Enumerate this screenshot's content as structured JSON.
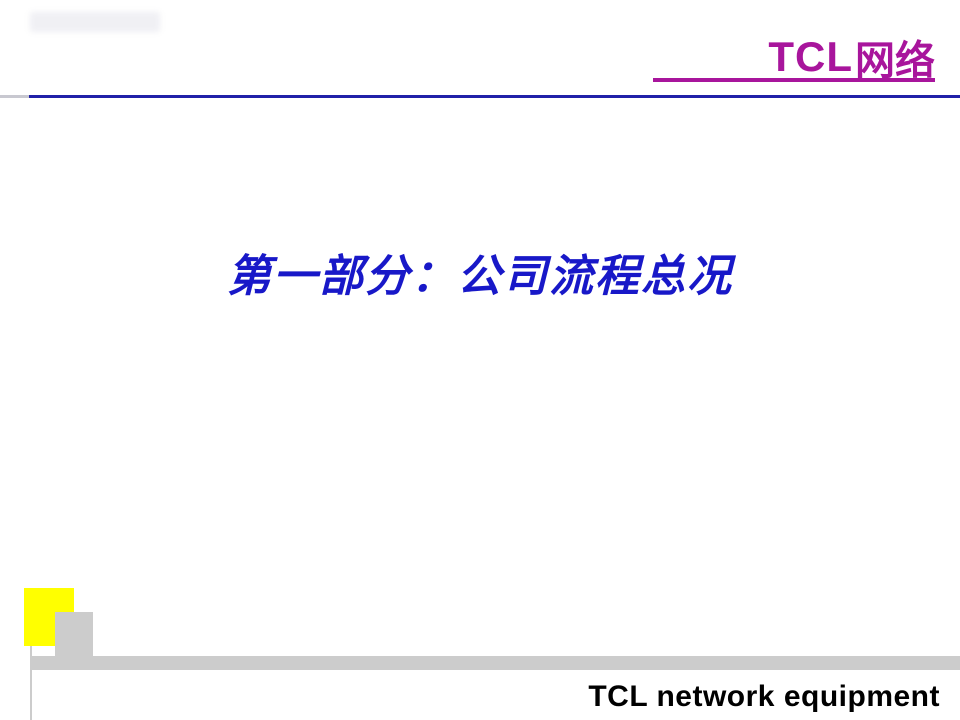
{
  "header": {
    "logo_tcl": "TCL",
    "logo_chinese": "网络",
    "brand_color": "#a8159c",
    "underline_color": "#2020a8"
  },
  "main": {
    "title": "第一部分：公司流程总况",
    "title_color": "#1818c8",
    "title_fontsize": 44
  },
  "footer": {
    "text": "TCL network equipment",
    "yellow_box_color": "#ffff00",
    "gray_color": "#cccccc"
  }
}
